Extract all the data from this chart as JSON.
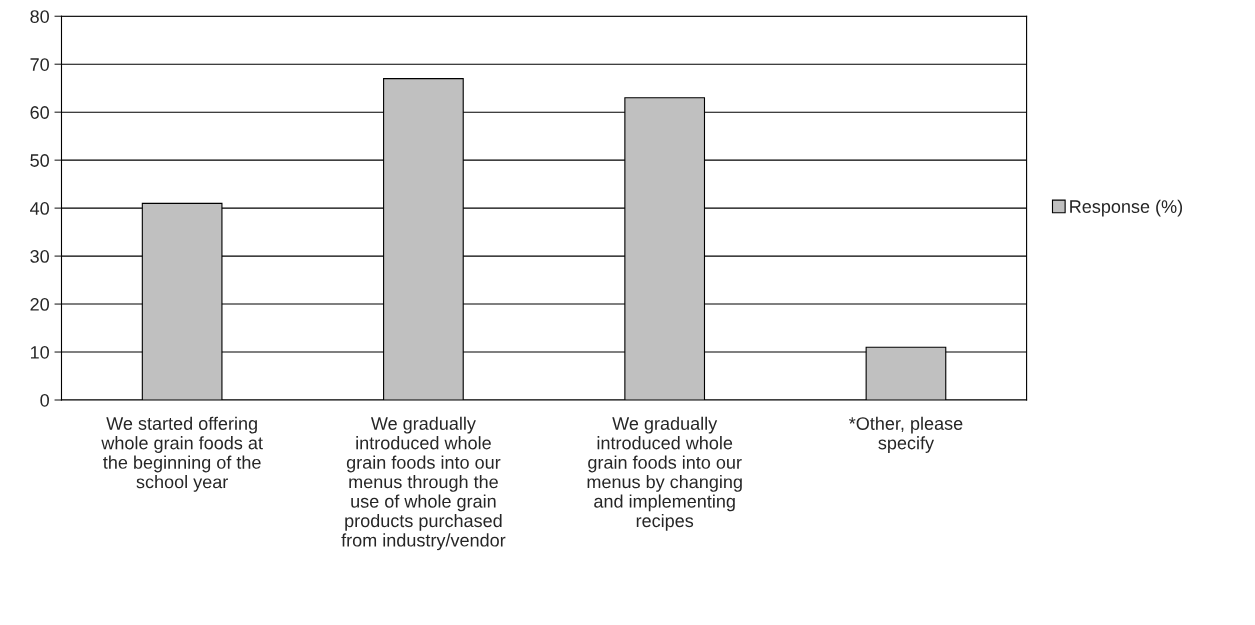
{
  "chart_data": {
    "type": "bar",
    "categories": [
      "We started offering\nwhole grain foods at\nthe beginning of the\nschool year",
      "We gradually\nintroduced whole\ngrain foods into our\nmenus through the\nuse of whole grain\nproducts purchased\nfrom industry/vendor",
      "We gradually\nintroduced whole\ngrain foods into our\nmenus by changing\nand implementing\nrecipes",
      "*Other, please\nspecify"
    ],
    "series": [
      {
        "name": "Response (%)",
        "color": "#c0c0c0",
        "values": [
          41,
          67,
          63,
          11
        ]
      }
    ],
    "ylim": [
      0,
      80
    ],
    "yticks": [
      0,
      10,
      20,
      30,
      40,
      50,
      60,
      70,
      80
    ],
    "grid": "y",
    "legend": "right"
  }
}
